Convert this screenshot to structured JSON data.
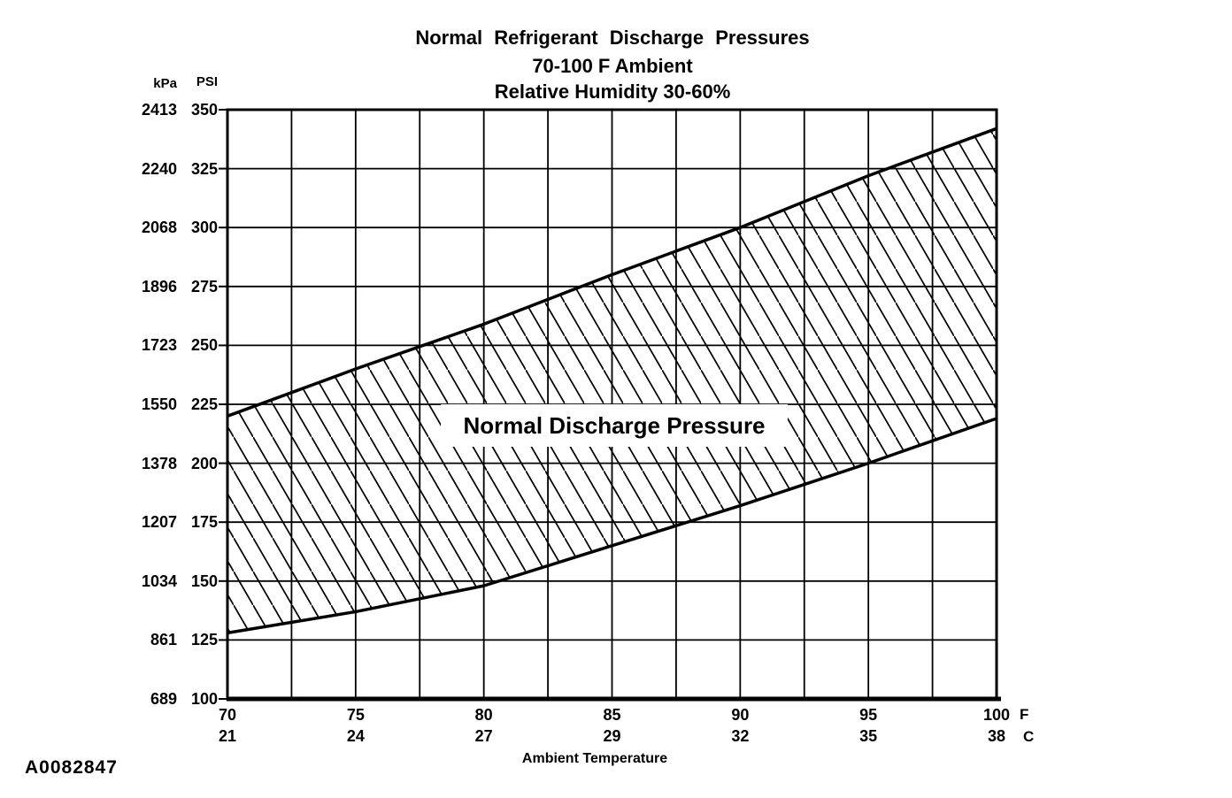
{
  "figure": {
    "code": "A0082847"
  },
  "colors": {
    "ink": "#000000",
    "paper": "#ffffff"
  },
  "chart_data": {
    "type": "area",
    "title": "Normal Refrigerant Discharge Pressures",
    "subtitle1": "70-100 F Ambient",
    "subtitle2": "Relative Humidity 30-60%",
    "band_label": "Normal Discharge Pressure",
    "xlabel": "Ambient Temperature",
    "x_unit_primary": "F",
    "x_unit_secondary": "C",
    "y_unit_secondary": "kPa",
    "y_unit_primary": "PSI",
    "xlim_f": [
      70,
      100
    ],
    "ylim_psi": [
      100,
      350
    ],
    "x_grid_step_f": 2.5,
    "y_grid_step_psi": 25,
    "grid": true,
    "fill": "hatched-band",
    "x_f": [
      70,
      75,
      80,
      85,
      90,
      95,
      100
    ],
    "x_c": [
      21,
      24,
      27,
      29,
      32,
      35,
      38
    ],
    "y_ticks_psi": [
      350,
      325,
      300,
      275,
      250,
      225,
      200,
      175,
      150,
      125,
      100
    ],
    "y_ticks_kpa": [
      2413,
      2240,
      2068,
      1896,
      1723,
      1550,
      1378,
      1207,
      1034,
      861,
      689
    ],
    "series": [
      {
        "name": "upper-limit-psi",
        "x_f": [
          70,
          75,
          80,
          85,
          90,
          95,
          100
        ],
        "values": [
          220,
          240,
          259,
          280,
          300,
          322,
          342
        ]
      },
      {
        "name": "lower-limit-psi",
        "x_f": [
          70,
          75,
          80,
          85,
          90,
          95,
          100
        ],
        "values": [
          128,
          137,
          148,
          165,
          182,
          200,
          219
        ]
      }
    ]
  }
}
